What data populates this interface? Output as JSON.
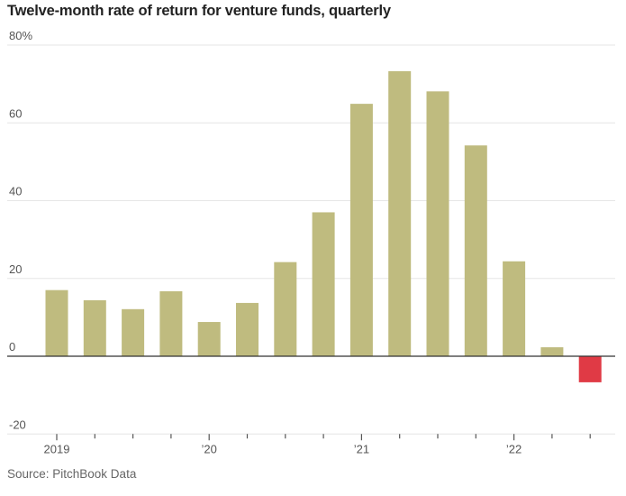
{
  "chart_data": {
    "type": "bar",
    "title": "Twelve-month rate of return for venture funds, quarterly",
    "source": "Source: PitchBook Data",
    "xlabel": "",
    "ylabel": "",
    "ylim": [
      -20,
      80
    ],
    "y_ticks": [
      80,
      60,
      40,
      20,
      0,
      -20
    ],
    "y_tick_labels": [
      "80%",
      "60",
      "40",
      "20",
      "0",
      "-20"
    ],
    "x_tick_labels": [
      {
        "index": 0,
        "label": "2019"
      },
      {
        "index": 4,
        "label": "’20"
      },
      {
        "index": 8,
        "label": "’21"
      },
      {
        "index": 12,
        "label": "’22"
      }
    ],
    "categories": [
      "2019 Q1",
      "2019 Q2",
      "2019 Q3",
      "2019 Q4",
      "2020 Q1",
      "2020 Q2",
      "2020 Q3",
      "2020 Q4",
      "2021 Q1",
      "2021 Q2",
      "2021 Q3",
      "2021 Q4",
      "2022 Q1",
      "2022 Q2",
      "2022 Q3"
    ],
    "values": [
      17.0,
      14.4,
      12.1,
      16.7,
      8.8,
      13.7,
      24.2,
      37.0,
      64.9,
      73.3,
      68.1,
      54.2,
      24.4,
      2.3,
      -6.7
    ],
    "grid": true,
    "colors": {
      "positive": "#bfbb7f",
      "negative": "#e03a45",
      "grid": "#e6e6e6",
      "axis": "#555555"
    }
  }
}
